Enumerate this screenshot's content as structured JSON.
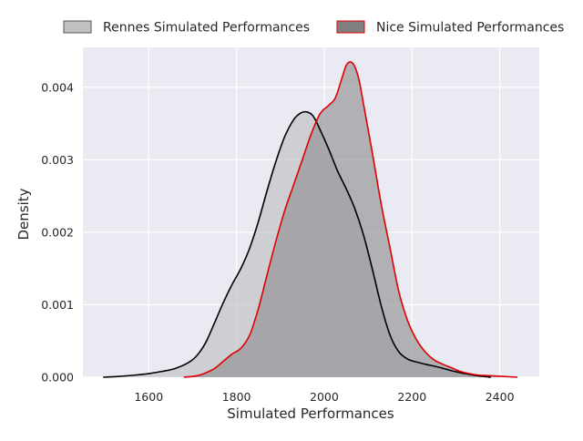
{
  "chart_data": {
    "type": "area",
    "title": "",
    "xlabel": "Simulated Performances",
    "ylabel": "Density",
    "xlim": [
      1450,
      2490
    ],
    "ylim": [
      0,
      0.00455
    ],
    "xticks": [
      1600,
      1800,
      2000,
      2200,
      2400
    ],
    "xtick_labels": [
      "1600",
      "1800",
      "2000",
      "2200",
      "2400"
    ],
    "yticks": [
      0,
      0.001,
      0.002,
      0.003,
      0.004
    ],
    "ytick_labels": [
      "0.000",
      "0.001",
      "0.002",
      "0.003",
      "0.004"
    ],
    "grid": true,
    "legend_position": "top, above plot",
    "series": [
      {
        "name": "Rennes Simulated Performances",
        "line_color": "#000000",
        "fill_color": "#bdbdc3",
        "legend_fill": "#c0c0c0",
        "legend_edge": "#555555",
        "points": [
          [
            1496,
            0.0
          ],
          [
            1530,
            1e-05
          ],
          [
            1570,
            3e-05
          ],
          [
            1600,
            5e-05
          ],
          [
            1630,
            8e-05
          ],
          [
            1660,
            0.00012
          ],
          [
            1690,
            0.0002
          ],
          [
            1710,
            0.0003
          ],
          [
            1730,
            0.00048
          ],
          [
            1750,
            0.00075
          ],
          [
            1770,
            0.00103
          ],
          [
            1790,
            0.00128
          ],
          [
            1810,
            0.0015
          ],
          [
            1830,
            0.00178
          ],
          [
            1850,
            0.00215
          ],
          [
            1870,
            0.00258
          ],
          [
            1890,
            0.00298
          ],
          [
            1910,
            0.00332
          ],
          [
            1930,
            0.00355
          ],
          [
            1945,
            0.00364
          ],
          [
            1960,
            0.00366
          ],
          [
            1975,
            0.0036
          ],
          [
            1990,
            0.00342
          ],
          [
            2010,
            0.00315
          ],
          [
            2030,
            0.00285
          ],
          [
            2050,
            0.0026
          ],
          [
            2070,
            0.00232
          ],
          [
            2090,
            0.00195
          ],
          [
            2110,
            0.00148
          ],
          [
            2130,
            0.00098
          ],
          [
            2150,
            0.00058
          ],
          [
            2170,
            0.00035
          ],
          [
            2190,
            0.00025
          ],
          [
            2210,
            0.00021
          ],
          [
            2230,
            0.00018
          ],
          [
            2260,
            0.00014
          ],
          [
            2290,
            9e-05
          ],
          [
            2320,
            5e-05
          ],
          [
            2350,
            2e-05
          ],
          [
            2380,
            0.0
          ]
        ]
      },
      {
        "name": "Nice Simulated Performances",
        "line_color": "#e00000",
        "fill_color": "#8c8c90",
        "legend_fill": "#808080",
        "legend_edge": "#e00000",
        "points": [
          [
            1680,
            0.0
          ],
          [
            1710,
            2e-05
          ],
          [
            1730,
            6e-05
          ],
          [
            1750,
            0.00012
          ],
          [
            1770,
            0.00022
          ],
          [
            1790,
            0.00032
          ],
          [
            1810,
            0.0004
          ],
          [
            1830,
            0.00058
          ],
          [
            1850,
            0.00095
          ],
          [
            1870,
            0.00142
          ],
          [
            1890,
            0.00188
          ],
          [
            1910,
            0.0023
          ],
          [
            1930,
            0.00265
          ],
          [
            1950,
            0.003
          ],
          [
            1970,
            0.00335
          ],
          [
            1990,
            0.00363
          ],
          [
            2010,
            0.00375
          ],
          [
            2025,
            0.00385
          ],
          [
            2040,
            0.00412
          ],
          [
            2050,
            0.0043
          ],
          [
            2060,
            0.00435
          ],
          [
            2070,
            0.00428
          ],
          [
            2080,
            0.00408
          ],
          [
            2090,
            0.00375
          ],
          [
            2110,
            0.00308
          ],
          [
            2130,
            0.00238
          ],
          [
            2150,
            0.00178
          ],
          [
            2170,
            0.00118
          ],
          [
            2190,
            0.00078
          ],
          [
            2210,
            0.00052
          ],
          [
            2230,
            0.00035
          ],
          [
            2250,
            0.00024
          ],
          [
            2270,
            0.00018
          ],
          [
            2290,
            0.00013
          ],
          [
            2310,
            8e-05
          ],
          [
            2330,
            5e-05
          ],
          [
            2350,
            3e-05
          ],
          [
            2380,
            2e-05
          ],
          [
            2410,
            1e-05
          ],
          [
            2440,
            0.0
          ]
        ]
      }
    ]
  }
}
